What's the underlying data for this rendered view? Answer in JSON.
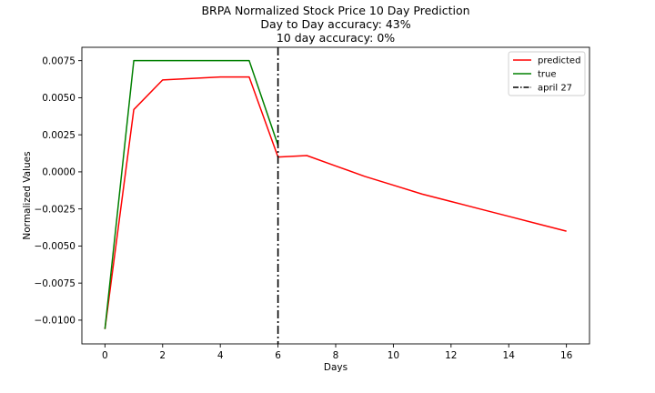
{
  "chart_data": {
    "type": "line",
    "title_lines": [
      "BRPA Normalized Stock Price 10 Day Prediction",
      "Day to Day accuracy: 43%",
      "10 day accuracy: 0%"
    ],
    "xlabel": "Days",
    "ylabel": "Normalized Values",
    "xlim": [
      -0.8,
      16.8
    ],
    "ylim": [
      -0.0116,
      0.0084
    ],
    "xticks": [
      0,
      2,
      4,
      6,
      8,
      10,
      12,
      14,
      16
    ],
    "xtick_labels": [
      "0",
      "2",
      "4",
      "6",
      "8",
      "10",
      "12",
      "14",
      "16"
    ],
    "yticks": [
      -0.01,
      -0.0075,
      -0.005,
      -0.0025,
      0.0,
      0.0025,
      0.005,
      0.0075
    ],
    "ytick_labels": [
      "−0.0100",
      "−0.0075",
      "−0.0050",
      "−0.0025",
      "0.0000",
      "0.0025",
      "0.0050",
      "0.0075"
    ],
    "series": [
      {
        "name": "predicted",
        "color": "#ff0000",
        "x": [
          0,
          1,
          2,
          3,
          4,
          5,
          6,
          7,
          8,
          9,
          10,
          11,
          12,
          13,
          14,
          15,
          16
        ],
        "y": [
          -0.0106,
          0.0042,
          0.0062,
          0.0063,
          0.0064,
          0.0064,
          0.001,
          0.0011,
          0.0004,
          -0.0003,
          -0.0009,
          -0.0015,
          -0.002,
          -0.0025,
          -0.003,
          -0.0035,
          -0.004
        ]
      },
      {
        "name": "true",
        "color": "#008000",
        "x": [
          0,
          1,
          2,
          3,
          4,
          5,
          6
        ],
        "y": [
          -0.0106,
          0.0075,
          0.0075,
          0.0075,
          0.0075,
          0.0075,
          0.0018
        ]
      }
    ],
    "vline": {
      "name": "april 27",
      "x": 6,
      "color": "#000000",
      "style": "dashdot"
    },
    "legend_position": "top-right",
    "grid": false
  }
}
